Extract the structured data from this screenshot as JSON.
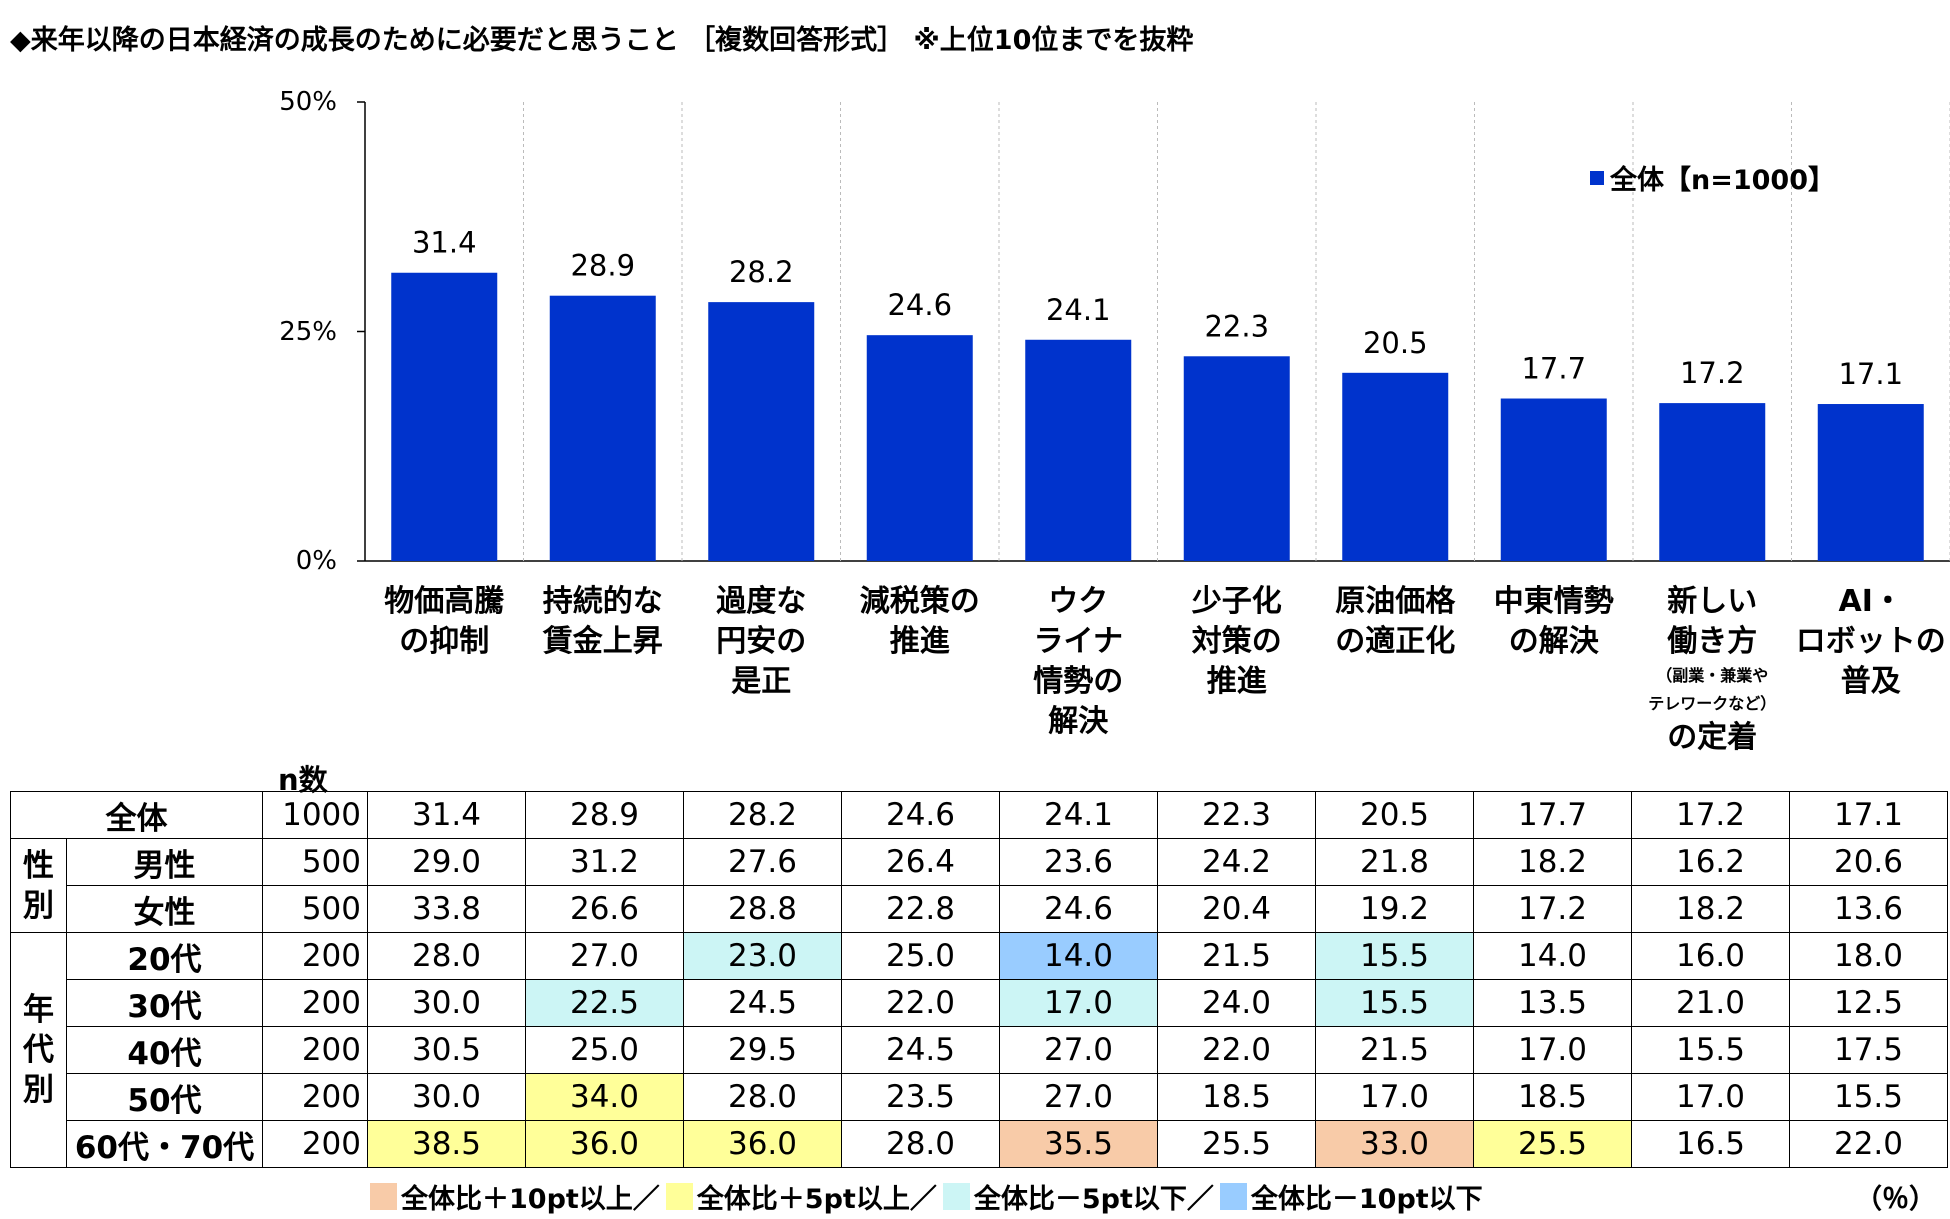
{
  "title": "◆来年以降の日本経済の成長のために必要だと思うこと ［複数回答形式］ ※上位10位までを抜粋",
  "legend": {
    "label": "全体【n=1000】",
    "color": "#0033cc"
  },
  "chart_data": {
    "type": "bar",
    "title": "来年以降の日本経済の成長のために必要だと思うこと",
    "categories": [
      "物価高騰の抑制",
      "持続的な賃金上昇",
      "過度な円安の是正",
      "減税策の推進",
      "ウクライナ情勢の解決",
      "少子化対策の推進",
      "原油価格の適正化",
      "中東情勢の解決",
      "新しい働き方（副業・兼業やテレワークなど）の定着",
      "AI・ロボットの普及"
    ],
    "series": [
      {
        "name": "全体【n=1000】",
        "values": [
          31.4,
          28.9,
          28.2,
          24.6,
          24.1,
          22.3,
          20.5,
          17.7,
          17.2,
          17.1
        ],
        "color": "#0033cc"
      }
    ],
    "value_labels": [
      "31.4",
      "28.9",
      "28.2",
      "24.6",
      "24.1",
      "22.3",
      "20.5",
      "17.7",
      "17.2",
      "17.1"
    ],
    "yticks": [
      "50%",
      "25%",
      "0%"
    ],
    "ylim": [
      0,
      50
    ],
    "legend_position": "top-right"
  },
  "category_labels": [
    {
      "l1": "物価高騰",
      "l2": "の抑制"
    },
    {
      "l1": "持続的な",
      "l2": "賃金上昇"
    },
    {
      "l1": "過度な",
      "l2": "円安の",
      "l3": "是正"
    },
    {
      "l1": "減税策の",
      "l2": "推進"
    },
    {
      "l1": "ウク",
      "l2": "ライナ",
      "l3": "情勢の",
      "l4": "解決"
    },
    {
      "l1": "少子化",
      "l2": "対策の",
      "l3": "推進"
    },
    {
      "l1": "原油価格",
      "l2": "の適正化"
    },
    {
      "l1": "中東情勢",
      "l2": "の解決"
    },
    {
      "l1": "新しい",
      "l2": "働き方",
      "s1": "（副業・兼業や",
      "s2": "テレワークなど）",
      "l3": "の定着"
    },
    {
      "l1": "AI・",
      "l2": "ロボットの",
      "l3": "普及"
    }
  ],
  "table": {
    "n_header": "n数",
    "groups": {
      "gender": "性別",
      "age": "年代別"
    },
    "rows": [
      {
        "label": "全体",
        "n": "1000",
        "values": [
          "31.4",
          "28.9",
          "28.2",
          "24.6",
          "24.1",
          "22.3",
          "20.5",
          "17.7",
          "17.2",
          "17.1"
        ],
        "hl": [
          0,
          0,
          0,
          0,
          0,
          0,
          0,
          0,
          0,
          0
        ]
      },
      {
        "label": "男性",
        "n": "500",
        "values": [
          "29.0",
          "31.2",
          "27.6",
          "26.4",
          "23.6",
          "24.2",
          "21.8",
          "18.2",
          "16.2",
          "20.6"
        ],
        "hl": [
          0,
          0,
          0,
          0,
          0,
          0,
          0,
          0,
          0,
          0
        ]
      },
      {
        "label": "女性",
        "n": "500",
        "values": [
          "33.8",
          "26.6",
          "28.8",
          "22.8",
          "24.6",
          "20.4",
          "19.2",
          "17.2",
          "18.2",
          "13.6"
        ],
        "hl": [
          0,
          0,
          0,
          0,
          0,
          0,
          0,
          0,
          0,
          0
        ]
      },
      {
        "label": "20代",
        "n": "200",
        "values": [
          "28.0",
          "27.0",
          "23.0",
          "25.0",
          "14.0",
          "21.5",
          "15.5",
          "14.0",
          "16.0",
          "18.0"
        ],
        "hl": [
          0,
          0,
          3,
          0,
          4,
          0,
          3,
          0,
          0,
          0
        ]
      },
      {
        "label": "30代",
        "n": "200",
        "values": [
          "30.0",
          "22.5",
          "24.5",
          "22.0",
          "17.0",
          "24.0",
          "15.5",
          "13.5",
          "21.0",
          "12.5"
        ],
        "hl": [
          0,
          3,
          0,
          0,
          3,
          0,
          3,
          0,
          0,
          0
        ]
      },
      {
        "label": "40代",
        "n": "200",
        "values": [
          "30.5",
          "25.0",
          "29.5",
          "24.5",
          "27.0",
          "22.0",
          "21.5",
          "17.0",
          "15.5",
          "17.5"
        ],
        "hl": [
          0,
          0,
          0,
          0,
          0,
          0,
          0,
          0,
          0,
          0
        ]
      },
      {
        "label": "50代",
        "n": "200",
        "values": [
          "30.0",
          "34.0",
          "28.0",
          "23.5",
          "27.0",
          "18.5",
          "17.0",
          "18.5",
          "17.0",
          "15.5"
        ],
        "hl": [
          0,
          2,
          0,
          0,
          0,
          0,
          0,
          0,
          0,
          0
        ]
      },
      {
        "label": "60代・70代",
        "n": "200",
        "values": [
          "38.5",
          "36.0",
          "36.0",
          "28.0",
          "35.5",
          "25.5",
          "33.0",
          "25.5",
          "16.5",
          "22.0"
        ],
        "hl": [
          2,
          2,
          2,
          0,
          1,
          0,
          1,
          2,
          0,
          0
        ]
      }
    ]
  },
  "highlight_legend": [
    {
      "label": "全体比＋10pt以上／",
      "color": "#f8cba8"
    },
    {
      "label": "全体比＋5pt以上／",
      "color": "#ffff99"
    },
    {
      "label": "全体比－5pt以下／",
      "color": "#ccf5f5"
    },
    {
      "label": "全体比－10pt以下",
      "color": "#99ccff"
    }
  ],
  "unit": "（％）"
}
